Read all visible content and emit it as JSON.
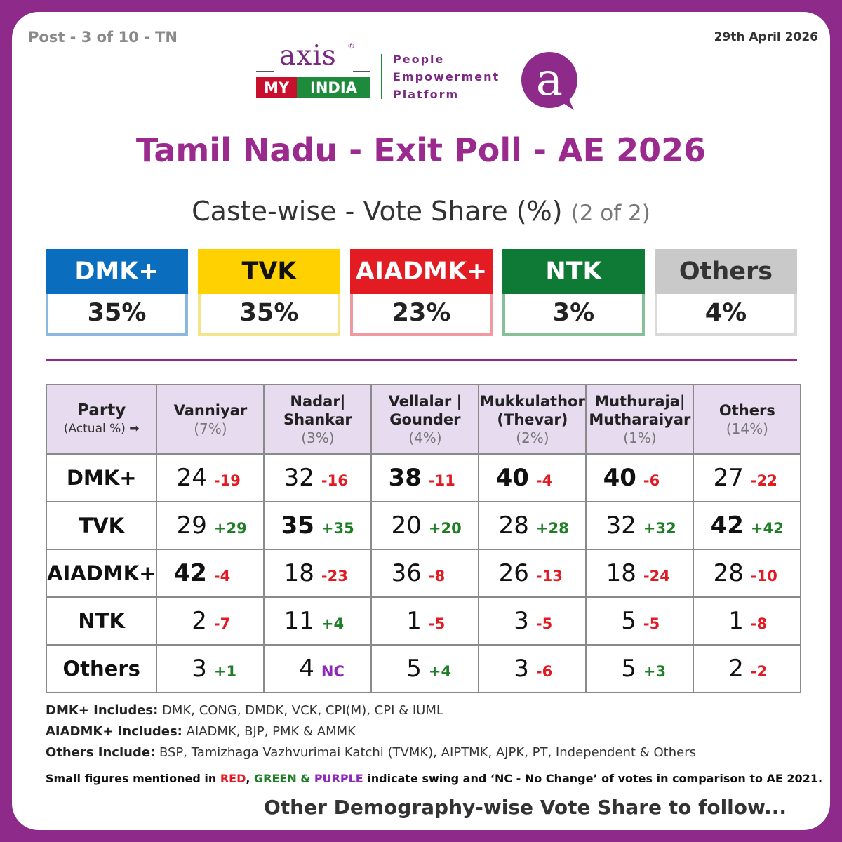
{
  "header": {
    "post": "Post - 3 of 10 - TN",
    "date": "29th April 2026",
    "brand_axis": "axis",
    "brand_reg": "®",
    "brand_my": "MY",
    "brand_india": "INDIA",
    "platform_line1": "People",
    "platform_line2": "Empowerment",
    "platform_line3": "Platform",
    "logo_letter": "a"
  },
  "title": "Tamil Nadu - Exit Poll - AE 2026",
  "subtitle": "Caste-wise - Vote Share (%)",
  "subtitle_note": "(2 of 2)",
  "colors": {
    "DMK+": "#0a6dbd",
    "TVK": "#ffd100",
    "AIADMK+": "#e31b23",
    "NTK": "#0e7a36",
    "Others": "#c9c9c9",
    "frame": "#8e2a8a",
    "swing_negative": "#e01b24",
    "swing_positive": "#1e7d25",
    "no_change": "#8e2ab8"
  },
  "overall": [
    {
      "party": "DMK+",
      "value": "35%"
    },
    {
      "party": "TVK",
      "value": "35%"
    },
    {
      "party": "AIADMK+",
      "value": "23%"
    },
    {
      "party": "NTK",
      "value": "3%"
    },
    {
      "party": "Others",
      "value": "4%"
    }
  ],
  "chart_data": {
    "type": "table",
    "title": "Tamil Nadu - Exit Poll - AE 2026",
    "subtitle": "Caste-wise - Vote Share (%) (2 of 2)",
    "corner_label": "Party",
    "corner_sub": "(Actual %) ➡",
    "columns": [
      {
        "line1": "Vanniyar",
        "line2": "",
        "share": "(7%)"
      },
      {
        "line1": "Nadar|",
        "line2": "Shankar",
        "share": "(3%)"
      },
      {
        "line1": "Vellalar |",
        "line2": "Gounder",
        "share": "(4%)"
      },
      {
        "line1": "Mukkulathor",
        "line2": "(Thevar)",
        "share": "(2%)"
      },
      {
        "line1": "Muthuraja|",
        "line2": "Mutharaiyar",
        "share": "(1%)"
      },
      {
        "line1": "Others",
        "line2": "",
        "share": "(14%)"
      }
    ],
    "rows": [
      {
        "party": "DMK+",
        "cells": [
          {
            "value": "24",
            "swing": "-19",
            "type": "neg",
            "bold": false
          },
          {
            "value": "32",
            "swing": "-16",
            "type": "neg",
            "bold": false
          },
          {
            "value": "38",
            "swing": "-11",
            "type": "neg",
            "bold": true
          },
          {
            "value": "40",
            "swing": "-4",
            "type": "neg",
            "bold": true
          },
          {
            "value": "40",
            "swing": "-6",
            "type": "neg",
            "bold": true
          },
          {
            "value": "27",
            "swing": "-22",
            "type": "neg",
            "bold": false
          }
        ]
      },
      {
        "party": "TVK",
        "cells": [
          {
            "value": "29",
            "swing": "+29",
            "type": "pos",
            "bold": false
          },
          {
            "value": "35",
            "swing": "+35",
            "type": "pos",
            "bold": true
          },
          {
            "value": "20",
            "swing": "+20",
            "type": "pos",
            "bold": false
          },
          {
            "value": "28",
            "swing": "+28",
            "type": "pos",
            "bold": false
          },
          {
            "value": "32",
            "swing": "+32",
            "type": "pos",
            "bold": false
          },
          {
            "value": "42",
            "swing": "+42",
            "type": "pos",
            "bold": true
          }
        ]
      },
      {
        "party": "AIADMK+",
        "cells": [
          {
            "value": "42",
            "swing": "-4",
            "type": "neg",
            "bold": true
          },
          {
            "value": "18",
            "swing": "-23",
            "type": "neg",
            "bold": false
          },
          {
            "value": "36",
            "swing": "-8",
            "type": "neg",
            "bold": false
          },
          {
            "value": "26",
            "swing": "-13",
            "type": "neg",
            "bold": false
          },
          {
            "value": "18",
            "swing": "-24",
            "type": "neg",
            "bold": false
          },
          {
            "value": "28",
            "swing": "-10",
            "type": "neg",
            "bold": false
          }
        ]
      },
      {
        "party": "NTK",
        "cells": [
          {
            "value": "2",
            "swing": "-7",
            "type": "neg",
            "bold": false
          },
          {
            "value": "11",
            "swing": "+4",
            "type": "pos",
            "bold": false
          },
          {
            "value": "1",
            "swing": "-5",
            "type": "neg",
            "bold": false
          },
          {
            "value": "3",
            "swing": "-5",
            "type": "neg",
            "bold": false
          },
          {
            "value": "5",
            "swing": "-5",
            "type": "neg",
            "bold": false
          },
          {
            "value": "1",
            "swing": "-8",
            "type": "neg",
            "bold": false
          }
        ]
      },
      {
        "party": "Others",
        "cells": [
          {
            "value": "3",
            "swing": "+1",
            "type": "pos",
            "bold": false
          },
          {
            "value": "4",
            "swing": "NC",
            "type": "nc",
            "bold": false
          },
          {
            "value": "5",
            "swing": "+4",
            "type": "pos",
            "bold": false
          },
          {
            "value": "3",
            "swing": "-6",
            "type": "neg",
            "bold": false
          },
          {
            "value": "5",
            "swing": "+3",
            "type": "pos",
            "bold": false
          },
          {
            "value": "2",
            "swing": "-2",
            "type": "neg",
            "bold": false
          }
        ]
      }
    ]
  },
  "notes": {
    "dmk_label": "DMK+ Includes:",
    "dmk_text": " DMK, CONG, DMDK, VCK, CPI(M), CPI & IUML",
    "aiadmk_label": "AIADMK+ Includes:",
    "aiadmk_text": " AIADMK, BJP, PMK & AMMK",
    "others_label": "Others Include:",
    "others_text": " BSP, Tamizhaga Vazhvurimai Katchi (TVMK), AIPTMK, AJPK, PT, Independent & Others",
    "swing_1": "Small figures mentioned in ",
    "swing_red": "RED",
    "swing_comma": ", ",
    "swing_green": "GREEN &",
    "swing_space": " ",
    "swing_purple": "PURPLE",
    "swing_2": " indicate swing and ‘NC - No Change’ of votes in comparison to AE 2021.",
    "follow": "Other Demography-wise Vote Share to follow..."
  }
}
